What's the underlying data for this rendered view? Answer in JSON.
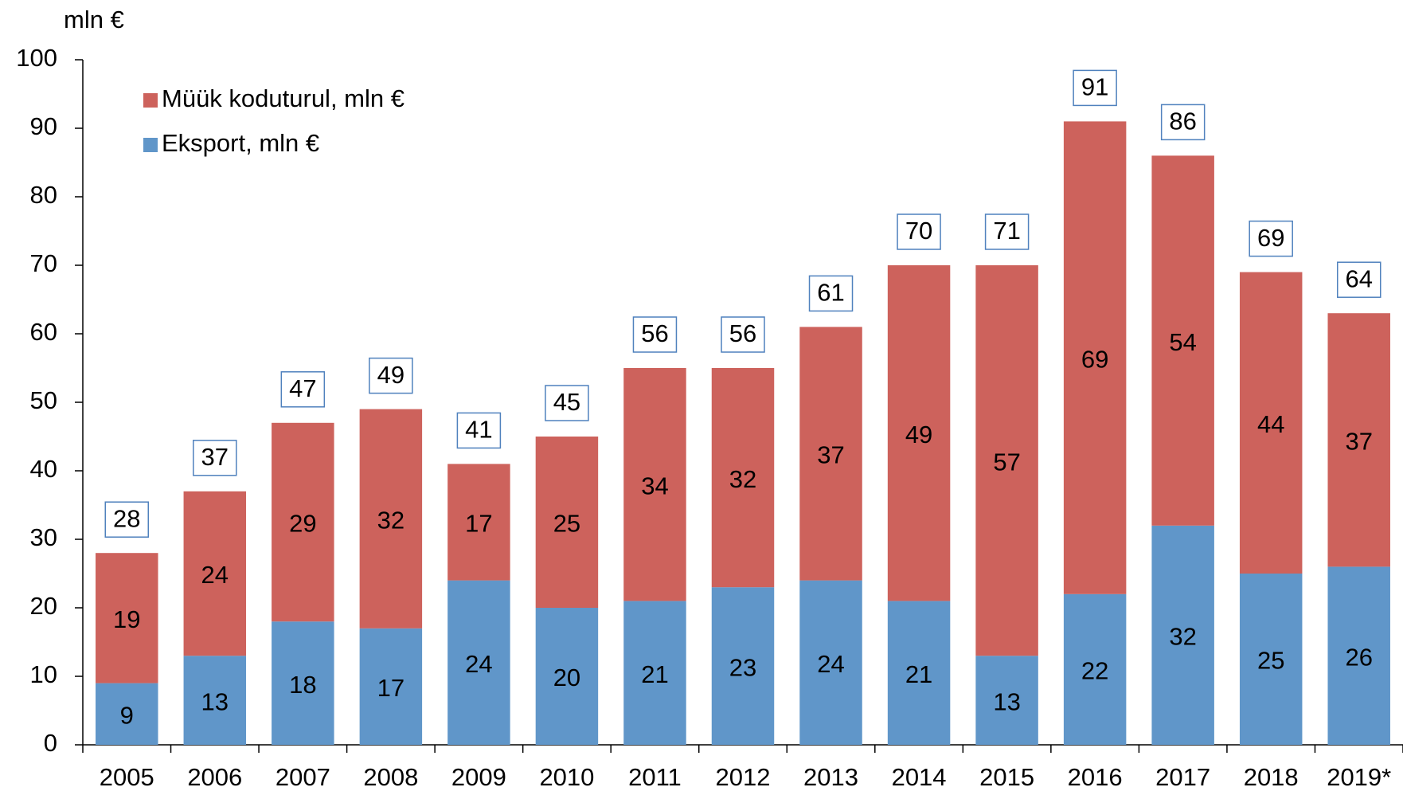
{
  "chart_data": {
    "type": "stacked_bar",
    "y_axis_label": "mln €",
    "categories": [
      "2005",
      "2006",
      "2007",
      "2008",
      "2009",
      "2010",
      "2011",
      "2012",
      "2013",
      "2014",
      "2015",
      "2016",
      "2017",
      "2018",
      "2019*"
    ],
    "series": [
      {
        "name": "Eksport, mln €",
        "color": "#6096c9",
        "values": [
          9,
          13,
          18,
          17,
          24,
          20,
          21,
          23,
          24,
          21,
          13,
          22,
          32,
          25,
          26
        ]
      },
      {
        "name": "Müük koduturul, mln €",
        "color": "#cd625c",
        "values": [
          19,
          24,
          29,
          32,
          17,
          25,
          34,
          32,
          37,
          49,
          57,
          69,
          54,
          44,
          37
        ]
      }
    ],
    "totals": [
      28,
      37,
      47,
      49,
      41,
      45,
      56,
      56,
      61,
      70,
      71,
      91,
      86,
      69,
      64
    ],
    "ylim": [
      0,
      100
    ],
    "yticks": [
      0,
      10,
      20,
      30,
      40,
      50,
      60,
      70,
      80,
      90,
      100
    ],
    "grid": false
  }
}
